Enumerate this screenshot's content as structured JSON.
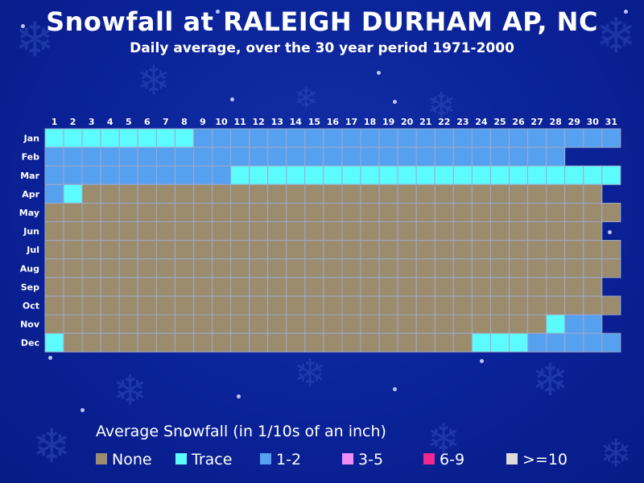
{
  "title": "Snowfall at RALEIGH DURHAM AP, NC",
  "subtitle": "Daily average, over the 30 year period 1971-2000",
  "legend_title": "Average Snowfall (in 1/10s of an inch)",
  "colors": {
    "none": "#9c8c6e",
    "trace": "#5cfcfc",
    "1-2": "#56a0f0",
    "3-5": "#f08cf8",
    "6-9": "#f02890",
    ">=10": "#dcdcdc",
    "grid": "#a0a8c8"
  },
  "chart_data": {
    "type": "heatmap",
    "title": "Snowfall at RALEIGH DURHAM AP, NC",
    "subtitle": "Daily average, over the 30 year period 1971-2000",
    "x_labels": [
      "1",
      "2",
      "3",
      "4",
      "5",
      "6",
      "7",
      "8",
      "9",
      "10",
      "11",
      "12",
      "13",
      "14",
      "15",
      "16",
      "17",
      "18",
      "19",
      "20",
      "21",
      "22",
      "23",
      "24",
      "25",
      "26",
      "27",
      "28",
      "29",
      "30",
      "31"
    ],
    "y_labels": [
      "Jan",
      "Feb",
      "Mar",
      "Apr",
      "May",
      "Jun",
      "Jul",
      "Aug",
      "Sep",
      "Oct",
      "Nov",
      "Dec"
    ],
    "legend": [
      {
        "key": "none",
        "label": "None"
      },
      {
        "key": "trace",
        "label": "Trace"
      },
      {
        "key": "1-2",
        "label": "1-2"
      },
      {
        "key": "3-5",
        "label": "3-5"
      },
      {
        "key": "6-9",
        "label": "6-9"
      },
      {
        "key": ">=10",
        "label": ">=10"
      }
    ],
    "values": [
      [
        "trace",
        "trace",
        "trace",
        "trace",
        "trace",
        "trace",
        "trace",
        "trace",
        "1-2",
        "1-2",
        "1-2",
        "1-2",
        "1-2",
        "1-2",
        "1-2",
        "1-2",
        "1-2",
        "1-2",
        "1-2",
        "1-2",
        "1-2",
        "1-2",
        "1-2",
        "1-2",
        "1-2",
        "1-2",
        "1-2",
        "1-2",
        "1-2",
        "1-2",
        "1-2"
      ],
      [
        "1-2",
        "1-2",
        "1-2",
        "1-2",
        "1-2",
        "1-2",
        "1-2",
        "1-2",
        "1-2",
        "1-2",
        "1-2",
        "1-2",
        "1-2",
        "1-2",
        "1-2",
        "1-2",
        "1-2",
        "1-2",
        "1-2",
        "1-2",
        "1-2",
        "1-2",
        "1-2",
        "1-2",
        "1-2",
        "1-2",
        "1-2",
        "1-2"
      ],
      [
        "1-2",
        "1-2",
        "1-2",
        "1-2",
        "1-2",
        "1-2",
        "1-2",
        "1-2",
        "1-2",
        "1-2",
        "trace",
        "trace",
        "trace",
        "trace",
        "trace",
        "trace",
        "trace",
        "trace",
        "trace",
        "trace",
        "trace",
        "trace",
        "trace",
        "trace",
        "trace",
        "trace",
        "trace",
        "trace",
        "trace",
        "trace",
        "trace"
      ],
      [
        "1-2",
        "trace",
        "none",
        "none",
        "none",
        "none",
        "none",
        "none",
        "none",
        "none",
        "none",
        "none",
        "none",
        "none",
        "none",
        "none",
        "none",
        "none",
        "none",
        "none",
        "none",
        "none",
        "none",
        "none",
        "none",
        "none",
        "none",
        "none",
        "none",
        "none"
      ],
      [
        "none",
        "none",
        "none",
        "none",
        "none",
        "none",
        "none",
        "none",
        "none",
        "none",
        "none",
        "none",
        "none",
        "none",
        "none",
        "none",
        "none",
        "none",
        "none",
        "none",
        "none",
        "none",
        "none",
        "none",
        "none",
        "none",
        "none",
        "none",
        "none",
        "none",
        "none"
      ],
      [
        "none",
        "none",
        "none",
        "none",
        "none",
        "none",
        "none",
        "none",
        "none",
        "none",
        "none",
        "none",
        "none",
        "none",
        "none",
        "none",
        "none",
        "none",
        "none",
        "none",
        "none",
        "none",
        "none",
        "none",
        "none",
        "none",
        "none",
        "none",
        "none",
        "none"
      ],
      [
        "none",
        "none",
        "none",
        "none",
        "none",
        "none",
        "none",
        "none",
        "none",
        "none",
        "none",
        "none",
        "none",
        "none",
        "none",
        "none",
        "none",
        "none",
        "none",
        "none",
        "none",
        "none",
        "none",
        "none",
        "none",
        "none",
        "none",
        "none",
        "none",
        "none",
        "none"
      ],
      [
        "none",
        "none",
        "none",
        "none",
        "none",
        "none",
        "none",
        "none",
        "none",
        "none",
        "none",
        "none",
        "none",
        "none",
        "none",
        "none",
        "none",
        "none",
        "none",
        "none",
        "none",
        "none",
        "none",
        "none",
        "none",
        "none",
        "none",
        "none",
        "none",
        "none",
        "none"
      ],
      [
        "none",
        "none",
        "none",
        "none",
        "none",
        "none",
        "none",
        "none",
        "none",
        "none",
        "none",
        "none",
        "none",
        "none",
        "none",
        "none",
        "none",
        "none",
        "none",
        "none",
        "none",
        "none",
        "none",
        "none",
        "none",
        "none",
        "none",
        "none",
        "none",
        "none"
      ],
      [
        "none",
        "none",
        "none",
        "none",
        "none",
        "none",
        "none",
        "none",
        "none",
        "none",
        "none",
        "none",
        "none",
        "none",
        "none",
        "none",
        "none",
        "none",
        "none",
        "none",
        "none",
        "none",
        "none",
        "none",
        "none",
        "none",
        "none",
        "none",
        "none",
        "none",
        "none"
      ],
      [
        "none",
        "none",
        "none",
        "none",
        "none",
        "none",
        "none",
        "none",
        "none",
        "none",
        "none",
        "none",
        "none",
        "none",
        "none",
        "none",
        "none",
        "none",
        "none",
        "none",
        "none",
        "none",
        "none",
        "none",
        "none",
        "none",
        "none",
        "trace",
        "1-2",
        "1-2"
      ],
      [
        "trace",
        "none",
        "none",
        "none",
        "none",
        "none",
        "none",
        "none",
        "none",
        "none",
        "none",
        "none",
        "none",
        "none",
        "none",
        "none",
        "none",
        "none",
        "none",
        "none",
        "none",
        "none",
        "none",
        "trace",
        "trace",
        "trace",
        "1-2",
        "1-2",
        "1-2",
        "1-2",
        "1-2"
      ]
    ]
  }
}
